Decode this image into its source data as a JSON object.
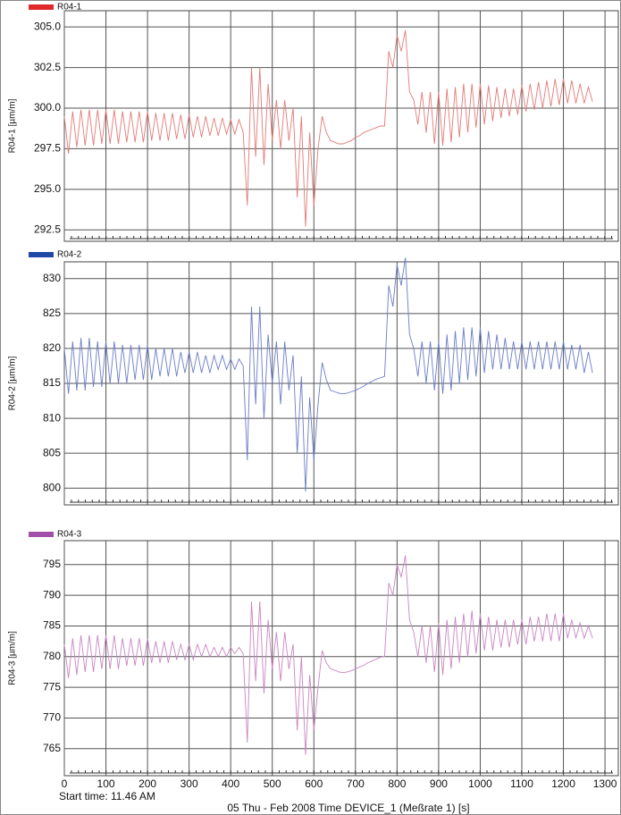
{
  "chart_data": [
    {
      "type": "line",
      "ylabel": "R04-1 [µm/m]",
      "x": [
        0,
        10,
        20,
        30,
        40,
        50,
        60,
        70,
        80,
        90,
        100,
        110,
        120,
        130,
        140,
        150,
        160,
        170,
        180,
        190,
        200,
        210,
        220,
        230,
        240,
        250,
        260,
        270,
        280,
        290,
        300,
        310,
        320,
        330,
        340,
        350,
        360,
        370,
        380,
        390,
        400,
        410,
        420,
        430,
        440,
        450,
        460,
        470,
        480,
        490,
        500,
        510,
        520,
        530,
        540,
        550,
        560,
        570,
        580,
        590,
        600,
        610,
        620,
        630,
        640,
        650,
        660,
        670,
        680,
        690,
        700,
        710,
        720,
        730,
        740,
        750,
        760,
        770,
        780,
        790,
        800,
        810,
        820,
        830,
        840,
        850,
        860,
        870,
        880,
        890,
        900,
        910,
        920,
        930,
        940,
        950,
        960,
        970,
        980,
        990,
        1000,
        1010,
        1020,
        1030,
        1040,
        1050,
        1060,
        1070,
        1080,
        1090,
        1100,
        1110,
        1120,
        1130,
        1140,
        1150,
        1160,
        1170,
        1180,
        1190,
        1200,
        1210,
        1220,
        1230,
        1240,
        1250,
        1260,
        1270
      ],
      "series": [
        {
          "name": "R04-1",
          "color": "#e02a2a",
          "line_color": "#e27a78",
          "values": [
            299.5,
            297.2,
            299.8,
            297.6,
            299.9,
            297.7,
            299.9,
            297.7,
            299.9,
            297.8,
            299.9,
            297.8,
            299.9,
            297.8,
            299.8,
            297.9,
            299.8,
            297.9,
            299.8,
            297.9,
            299.8,
            298.0,
            299.7,
            298.0,
            299.7,
            298.0,
            299.7,
            298.1,
            299.6,
            298.1,
            299.6,
            298.2,
            299.5,
            298.2,
            299.5,
            298.3,
            299.4,
            298.3,
            299.4,
            298.4,
            299.3,
            298.4,
            299.3,
            298.5,
            294.0,
            302.5,
            297.0,
            302.5,
            296.5,
            301.5,
            298.0,
            300.5,
            297.5,
            300.5,
            298.0,
            300.0,
            294.5,
            299.5,
            292.7,
            298.5,
            294.0,
            297.5,
            299.5,
            298.5,
            298.0,
            297.9,
            297.8,
            297.8,
            297.9,
            298.0,
            298.2,
            298.3,
            298.5,
            298.6,
            298.7,
            298.8,
            298.9,
            298.9,
            303.5,
            302.5,
            304.5,
            303.5,
            304.8,
            301.0,
            300.5,
            299.0,
            301.0,
            298.5,
            301.0,
            297.8,
            301.0,
            297.7,
            301.2,
            297.9,
            301.3,
            298.2,
            301.5,
            298.5,
            301.5,
            298.8,
            301.5,
            299.0,
            301.4,
            299.2,
            301.3,
            299.4,
            301.2,
            299.5,
            301.2,
            299.6,
            301.4,
            299.8,
            301.5,
            299.9,
            301.6,
            300.0,
            301.7,
            300.1,
            301.8,
            300.2,
            301.8,
            300.3,
            301.7,
            300.3,
            301.5,
            300.3,
            301.3,
            300.4
          ]
        }
      ],
      "xlim": [
        0,
        1332
      ],
      "xticks": [
        0,
        100,
        200,
        300,
        400,
        500,
        600,
        700,
        800,
        900,
        1000,
        1100,
        1200,
        1300
      ],
      "ylim": [
        291.8,
        306
      ],
      "yticks": [
        292.5,
        {
          "value": 295,
          "label": "295.0"
        },
        297.5,
        {
          "value": 300,
          "label": "300.0"
        },
        302.5,
        {
          "value": 305,
          "label": "305.0"
        }
      ],
      "grid": true
    },
    {
      "type": "line",
      "ylabel": "R04-2 [µm/m]",
      "x": [
        0,
        10,
        20,
        30,
        40,
        50,
        60,
        70,
        80,
        90,
        100,
        110,
        120,
        130,
        140,
        150,
        160,
        170,
        180,
        190,
        200,
        210,
        220,
        230,
        240,
        250,
        260,
        270,
        280,
        290,
        300,
        310,
        320,
        330,
        340,
        350,
        360,
        370,
        380,
        390,
        400,
        410,
        420,
        430,
        440,
        450,
        460,
        470,
        480,
        490,
        500,
        510,
        520,
        530,
        540,
        550,
        560,
        570,
        580,
        590,
        600,
        610,
        620,
        630,
        640,
        650,
        660,
        670,
        680,
        690,
        700,
        710,
        720,
        730,
        740,
        750,
        760,
        770,
        780,
        790,
        800,
        810,
        820,
        830,
        840,
        850,
        860,
        870,
        880,
        890,
        900,
        910,
        920,
        930,
        940,
        950,
        960,
        970,
        980,
        990,
        1000,
        1010,
        1020,
        1030,
        1040,
        1050,
        1060,
        1070,
        1080,
        1090,
        1100,
        1110,
        1120,
        1130,
        1140,
        1150,
        1160,
        1170,
        1180,
        1190,
        1200,
        1210,
        1220,
        1230,
        1240,
        1250,
        1260,
        1270
      ],
      "series": [
        {
          "name": "R04-2",
          "color": "#1f48a6",
          "line_color": "#6a7cc8",
          "values": [
            820,
            813.5,
            821,
            814,
            821.5,
            814,
            821.5,
            814.5,
            821,
            814.5,
            821,
            815,
            821,
            815,
            820.5,
            815,
            820.5,
            815.5,
            820.5,
            815.5,
            820.5,
            815.5,
            820,
            816,
            820,
            816,
            820,
            816,
            819.5,
            816.5,
            819.5,
            816.5,
            819.5,
            816.5,
            819,
            816.5,
            819,
            817,
            819,
            817,
            818.5,
            817,
            818.5,
            817.5,
            804,
            826,
            812,
            826,
            810,
            822,
            815,
            821,
            812,
            821,
            814,
            819,
            805,
            816,
            799.5,
            813,
            804,
            812,
            818,
            815.5,
            814,
            813.8,
            813.6,
            813.5,
            813.6,
            813.8,
            814,
            814.3,
            814.6,
            815,
            815.3,
            815.6,
            815.8,
            816,
            829,
            826,
            832,
            829,
            833,
            822,
            820,
            816,
            821,
            815,
            821,
            814,
            821,
            813.5,
            822,
            814,
            822.5,
            815,
            823,
            815.5,
            823,
            816,
            823,
            816.5,
            822.5,
            817,
            822,
            817,
            821.5,
            817,
            821,
            817,
            821,
            817,
            821,
            817,
            821,
            817,
            821,
            817,
            821,
            817,
            821,
            817,
            820.5,
            817,
            820.5,
            816.5,
            819.5,
            816.5
          ]
        }
      ],
      "xlim": [
        0,
        1332
      ],
      "xticks": [
        0,
        100,
        200,
        300,
        400,
        500,
        600,
        700,
        800,
        900,
        1000,
        1100,
        1200,
        1300
      ],
      "ylim": [
        797.6,
        832.4
      ],
      "yticks": [
        800,
        805,
        810,
        815,
        820,
        825,
        830
      ],
      "grid": true
    },
    {
      "type": "line",
      "ylabel": "R04-3 [µm/m]",
      "annotation": "Start time: 11.46 AM",
      "xlabel": "05 Thu - Feb 2008        Time DEVICE_1 (Meßrate 1) [s]",
      "x": [
        0,
        10,
        20,
        30,
        40,
        50,
        60,
        70,
        80,
        90,
        100,
        110,
        120,
        130,
        140,
        150,
        160,
        170,
        180,
        190,
        200,
        210,
        220,
        230,
        240,
        250,
        260,
        270,
        280,
        290,
        300,
        310,
        320,
        330,
        340,
        350,
        360,
        370,
        380,
        390,
        400,
        410,
        420,
        430,
        440,
        450,
        460,
        470,
        480,
        490,
        500,
        510,
        520,
        530,
        540,
        550,
        560,
        570,
        580,
        590,
        600,
        610,
        620,
        630,
        640,
        650,
        660,
        670,
        680,
        690,
        700,
        710,
        720,
        730,
        740,
        750,
        760,
        770,
        780,
        790,
        800,
        810,
        820,
        830,
        840,
        850,
        860,
        870,
        880,
        890,
        900,
        910,
        920,
        930,
        940,
        950,
        960,
        970,
        980,
        990,
        1000,
        1010,
        1020,
        1030,
        1040,
        1050,
        1060,
        1070,
        1080,
        1090,
        1100,
        1110,
        1120,
        1130,
        1140,
        1150,
        1160,
        1170,
        1180,
        1190,
        1200,
        1210,
        1220,
        1230,
        1240,
        1250,
        1260,
        1270
      ],
      "series": [
        {
          "name": "R04-3",
          "color": "#a24fa8",
          "line_color": "#c985c2",
          "values": [
            782,
            776.5,
            783,
            777,
            783.5,
            777.5,
            783.5,
            777.5,
            783.5,
            778,
            783.5,
            778,
            783.5,
            778,
            783,
            778.5,
            783,
            778.5,
            783,
            778.5,
            783,
            779,
            782.5,
            779,
            782.5,
            779,
            782.5,
            779.5,
            782,
            779.5,
            782,
            779.5,
            782,
            780,
            782,
            780,
            781.5,
            780,
            781.5,
            780,
            781.5,
            780.5,
            781.5,
            780.5,
            766,
            789,
            776,
            789,
            774,
            786,
            778,
            784,
            776,
            784,
            778,
            782,
            768,
            780,
            764,
            777,
            768,
            775,
            781,
            779,
            778,
            777.8,
            777.5,
            777.4,
            777.5,
            777.7,
            778,
            778.3,
            778.6,
            779,
            779.3,
            779.6,
            779.9,
            780,
            792,
            790,
            795,
            793,
            796.5,
            786,
            784,
            780,
            785,
            779,
            785,
            777.5,
            785.5,
            777,
            786,
            778,
            786.5,
            779,
            787,
            780,
            787.5,
            780.5,
            787,
            781,
            786.5,
            781,
            786,
            781.5,
            786,
            781.5,
            786,
            782,
            786,
            782,
            786.5,
            782.5,
            786.5,
            782.5,
            787,
            782.5,
            787,
            782.5,
            787,
            783,
            786,
            783,
            785.5,
            783,
            785,
            783
          ]
        }
      ],
      "xlim": [
        0,
        1332
      ],
      "xticks": [
        0,
        100,
        200,
        300,
        400,
        500,
        600,
        700,
        800,
        900,
        1000,
        1100,
        1200,
        1300
      ],
      "ylim": [
        760.6,
        798.9
      ],
      "yticks": [
        765,
        770,
        775,
        780,
        785,
        790,
        795
      ],
      "grid": true
    }
  ]
}
